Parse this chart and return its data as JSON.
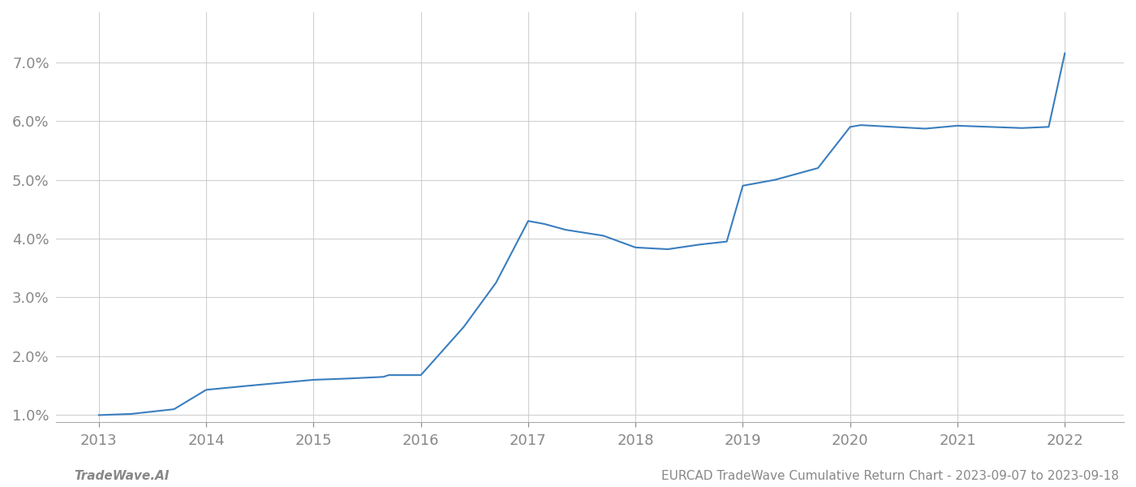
{
  "x": [
    2013.0,
    2013.3,
    2013.7,
    2014.0,
    2014.4,
    2014.7,
    2015.0,
    2015.3,
    2015.65,
    2015.7,
    2016.0,
    2016.4,
    2016.7,
    2017.0,
    2017.15,
    2017.35,
    2017.7,
    2018.0,
    2018.3,
    2018.6,
    2018.85,
    2019.0,
    2019.3,
    2019.7,
    2020.0,
    2020.1,
    2020.4,
    2020.7,
    2021.0,
    2021.3,
    2021.6,
    2021.85,
    2022.0
  ],
  "y": [
    1.0,
    1.02,
    1.1,
    1.43,
    1.5,
    1.55,
    1.6,
    1.62,
    1.65,
    1.68,
    1.68,
    2.5,
    3.25,
    4.3,
    4.25,
    4.15,
    4.05,
    3.85,
    3.82,
    3.9,
    3.95,
    4.9,
    5.0,
    5.2,
    5.9,
    5.93,
    5.9,
    5.87,
    5.92,
    5.9,
    5.88,
    5.9,
    7.15
  ],
  "line_color": "#3a7ebf",
  "line_width": 1.5,
  "footer_left": "TradeWave.AI",
  "footer_right": "EURCAD TradeWave Cumulative Return Chart - 2023-09-07 to 2023-09-18",
  "xlim": [
    2012.6,
    2022.55
  ],
  "ylim": [
    0.88,
    7.85
  ],
  "yticks": [
    1.0,
    2.0,
    3.0,
    4.0,
    5.0,
    6.0,
    7.0
  ],
  "xticks": [
    2013,
    2014,
    2015,
    2016,
    2017,
    2018,
    2019,
    2020,
    2021,
    2022
  ],
  "background_color": "#ffffff",
  "grid_color": "#cccccc",
  "tick_label_color": "#888888",
  "footer_color": "#888888",
  "footer_fontsize": 11,
  "tick_fontsize": 13
}
